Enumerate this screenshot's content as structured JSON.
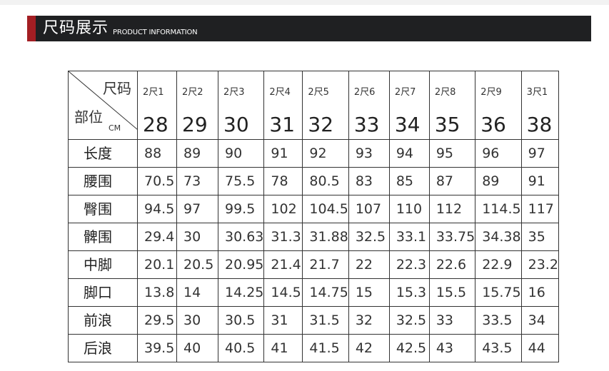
{
  "header": {
    "title": "尺码展示",
    "subtitle": "PRODUCT INFORMATION",
    "accent_color": "#a31e23",
    "bar_color": "#1f2022"
  },
  "table": {
    "corner": {
      "size_label": "尺码",
      "part_label": "部位",
      "unit": "CM"
    },
    "size_codes": [
      "2尺1",
      "2尺2",
      "2尺3",
      "2尺4",
      "2尺5",
      "2尺6",
      "2尺7",
      "2尺8",
      "2尺9",
      "3尺1"
    ],
    "waist_sizes": [
      "28",
      "29",
      "30",
      "31",
      "32",
      "33",
      "34",
      "35",
      "36",
      "38"
    ],
    "rows": [
      {
        "label": "长度",
        "values": [
          "88",
          "89",
          "90",
          "91",
          "92",
          "93",
          "94",
          "95",
          "96",
          "97"
        ]
      },
      {
        "label": "腰围",
        "values": [
          "70.5",
          "73",
          "75.5",
          "78",
          "80.5",
          "83",
          "85",
          "87",
          "89",
          "91"
        ]
      },
      {
        "label": "臀围",
        "values": [
          "94.5",
          "97",
          "99.5",
          "102",
          "104.5",
          "107",
          "110",
          "112",
          "114.5",
          "117"
        ]
      },
      {
        "label": "髀围",
        "values": [
          "29.4",
          "30",
          "30.63",
          "31.3",
          "31.88",
          "32.5",
          "33.1",
          "33.75",
          "34.38",
          "35"
        ]
      },
      {
        "label": "中脚",
        "values": [
          "20.1",
          "20.5",
          "20.95",
          "21.4",
          "21.7",
          "22",
          "22.3",
          "22.6",
          "22.9",
          "23.2"
        ]
      },
      {
        "label": "脚口",
        "values": [
          "13.8",
          "14",
          "14.25",
          "14.5",
          "14.75",
          "15",
          "15.3",
          "15.5",
          "15.75",
          "16"
        ]
      },
      {
        "label": "前浪",
        "values": [
          "29.5",
          "30",
          "30.5",
          "31",
          "31.5",
          "32",
          "32.5",
          "33",
          "33.5",
          "34"
        ]
      },
      {
        "label": "后浪",
        "values": [
          "39.5",
          "40",
          "40.5",
          "41",
          "41.5",
          "42",
          "42.5",
          "43",
          "43.5",
          "44"
        ]
      }
    ]
  }
}
